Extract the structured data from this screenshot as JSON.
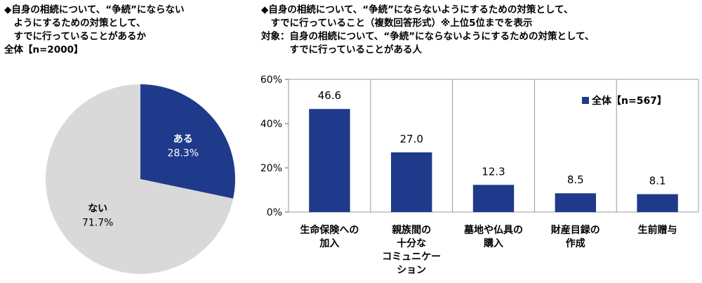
{
  "left": {
    "title_lines": [
      "◆自身の相続について、“争続”にならない",
      "　ようにするための対策として、",
      "　すでに行っていることがあるか"
    ],
    "base": "全体【n=2000】"
  },
  "right": {
    "title_lines": [
      "◆自身の相続について、“争続”にならないようにするための対策として、",
      "　すでに行っていること（複数回答形式）※上位5位までを表示"
    ],
    "target_lines": [
      "対象：自身の相続について、“争続”にならないようにするための対策として、",
      "　　　すでに行っていることがある人"
    ]
  },
  "chart_data": [
    {
      "type": "pie",
      "slices": [
        {
          "label": "ある",
          "value": 28.3,
          "value_label": "28.3%",
          "color": "#1F3A8A"
        },
        {
          "label": "ない",
          "value": 71.7,
          "value_label": "71.7%",
          "color": "#D9D9D9"
        }
      ]
    },
    {
      "type": "bar",
      "categories": [
        [
          "生命保険への",
          "加入"
        ],
        [
          "親族間の",
          "十分な",
          "コミュニケー",
          "ション"
        ],
        [
          "墓地や仏具の",
          "購入"
        ],
        [
          "財産目録の",
          "作成"
        ],
        [
          "生前贈与"
        ]
      ],
      "series": [
        {
          "name": "全体【n=567】",
          "values": [
            46.6,
            27.0,
            12.3,
            8.5,
            8.1
          ],
          "color": "#1F3A8A"
        }
      ],
      "value_labels": [
        "46.6",
        "27.0",
        "12.3",
        "8.5",
        "8.1"
      ],
      "ylim": [
        0,
        60
      ],
      "y_ticks": [
        0,
        20,
        40,
        60
      ],
      "y_tick_labels": [
        "0%",
        "20%",
        "40%",
        "60%"
      ],
      "legend_position": "top-right"
    }
  ]
}
